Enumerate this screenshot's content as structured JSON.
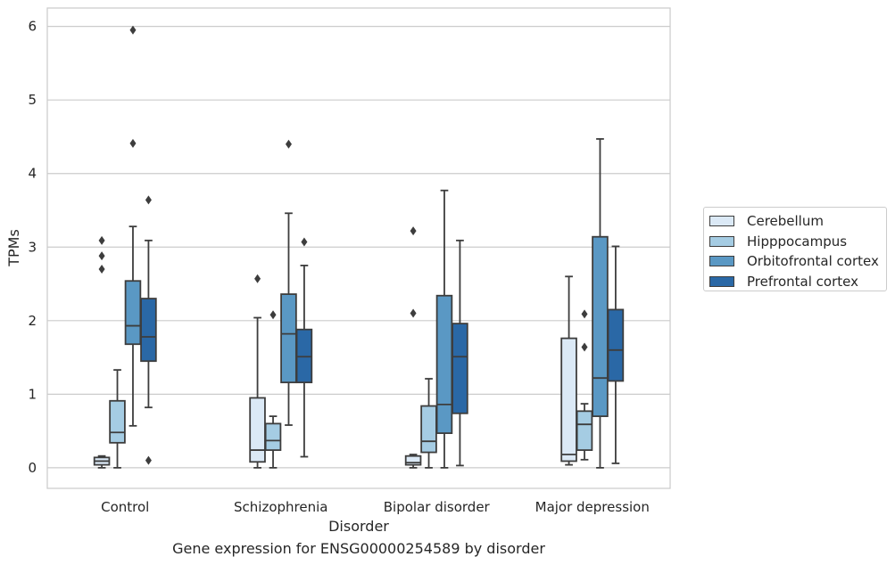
{
  "chart_data": {
    "type": "box",
    "title": "",
    "caption": "Gene expression for ENSG00000254589 by disorder",
    "xlabel": "Disorder",
    "ylabel": "TPMs",
    "ylim": [
      -0.28,
      6.25
    ],
    "yticks": [
      0,
      1,
      2,
      3,
      4,
      5,
      6
    ],
    "grid": "horizontal",
    "legend_position": "right",
    "categories": [
      "Control",
      "Schizophrenia",
      "Bipolar disorder",
      "Major depression"
    ],
    "series": [
      {
        "name": "Cerebellum",
        "color": "#dbe9f6",
        "boxes": [
          {
            "whisker_low": 0.0,
            "q1": 0.04,
            "median": 0.09,
            "q3": 0.14,
            "whisker_high": 0.16,
            "outliers": [
              2.7,
              2.88,
              3.09
            ]
          },
          {
            "whisker_low": 0.0,
            "q1": 0.08,
            "median": 0.24,
            "q3": 0.95,
            "whisker_high": 2.04,
            "outliers": [
              2.57
            ]
          },
          {
            "whisker_low": 0.0,
            "q1": 0.04,
            "median": 0.07,
            "q3": 0.16,
            "whisker_high": 0.18,
            "outliers": [
              2.1,
              3.22
            ]
          },
          {
            "whisker_low": 0.04,
            "q1": 0.09,
            "median": 0.18,
            "q3": 1.76,
            "whisker_high": 2.6,
            "outliers": []
          }
        ]
      },
      {
        "name": "Hipppocampus",
        "color": "#a5cce3",
        "boxes": [
          {
            "whisker_low": 0.0,
            "q1": 0.34,
            "median": 0.48,
            "q3": 0.91,
            "whisker_high": 1.33,
            "outliers": []
          },
          {
            "whisker_low": 0.0,
            "q1": 0.24,
            "median": 0.37,
            "q3": 0.6,
            "whisker_high": 0.7,
            "outliers": [
              2.08
            ]
          },
          {
            "whisker_low": 0.0,
            "q1": 0.21,
            "median": 0.36,
            "q3": 0.84,
            "whisker_high": 1.21,
            "outliers": []
          },
          {
            "whisker_low": 0.11,
            "q1": 0.24,
            "median": 0.59,
            "q3": 0.77,
            "whisker_high": 0.87,
            "outliers": [
              1.64,
              2.09
            ]
          }
        ]
      },
      {
        "name": "Orbitofrontal cortex",
        "color": "#5a98c4",
        "boxes": [
          {
            "whisker_low": 0.57,
            "q1": 1.68,
            "median": 1.93,
            "q3": 2.54,
            "whisker_high": 3.28,
            "outliers": [
              4.41,
              5.95
            ]
          },
          {
            "whisker_low": 0.58,
            "q1": 1.16,
            "median": 1.82,
            "q3": 2.36,
            "whisker_high": 3.46,
            "outliers": [
              4.4
            ]
          },
          {
            "whisker_low": 0.0,
            "q1": 0.47,
            "median": 0.86,
            "q3": 2.34,
            "whisker_high": 3.77,
            "outliers": []
          },
          {
            "whisker_low": 0.0,
            "q1": 0.7,
            "median": 1.22,
            "q3": 3.14,
            "whisker_high": 4.47,
            "outliers": []
          }
        ]
      },
      {
        "name": "Prefrontal cortex",
        "color": "#2a68a6",
        "boxes": [
          {
            "whisker_low": 0.82,
            "q1": 1.45,
            "median": 1.78,
            "q3": 2.3,
            "whisker_high": 3.09,
            "outliers": [
              0.1,
              3.64
            ]
          },
          {
            "whisker_low": 0.15,
            "q1": 1.16,
            "median": 1.51,
            "q3": 1.88,
            "whisker_high": 2.75,
            "outliers": [
              3.07
            ]
          },
          {
            "whisker_low": 0.03,
            "q1": 0.74,
            "median": 1.51,
            "q3": 1.96,
            "whisker_high": 3.09,
            "outliers": []
          },
          {
            "whisker_low": 0.06,
            "q1": 1.18,
            "median": 1.6,
            "q3": 2.15,
            "whisker_high": 3.01,
            "outliers": []
          }
        ]
      }
    ]
  }
}
